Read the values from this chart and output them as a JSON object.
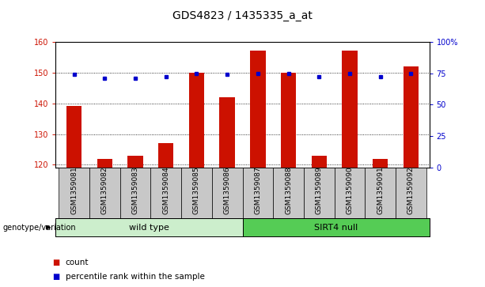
{
  "title": "GDS4823 / 1435335_a_at",
  "samples": [
    "GSM1359081",
    "GSM1359082",
    "GSM1359083",
    "GSM1359084",
    "GSM1359085",
    "GSM1359086",
    "GSM1359087",
    "GSM1359088",
    "GSM1359089",
    "GSM1359090",
    "GSM1359091",
    "GSM1359092"
  ],
  "counts": [
    139,
    122,
    123,
    127,
    150,
    142,
    157,
    150,
    123,
    157,
    122,
    152
  ],
  "percentiles": [
    74,
    71,
    71,
    72,
    75,
    74,
    75,
    75,
    72,
    75,
    72,
    75
  ],
  "bar_color": "#cc1100",
  "dot_color": "#0000cc",
  "ylim_left": [
    119,
    160
  ],
  "ylim_right": [
    0,
    100
  ],
  "yticks_left": [
    120,
    130,
    140,
    150,
    160
  ],
  "yticks_right": [
    0,
    25,
    50,
    75,
    100
  ],
  "ytick_labels_right": [
    "0",
    "25",
    "50",
    "75",
    "100%"
  ],
  "bg_color": "#ffffff",
  "legend_count_color": "#cc1100",
  "legend_pct_color": "#0000cc",
  "label_bar": "count",
  "label_pct": "percentile rank within the sample",
  "genotype_label": "genotype/variation",
  "title_fontsize": 10,
  "tick_fontsize": 7,
  "sample_fontsize": 6.5,
  "group_fontsize": 8,
  "legend_fontsize": 7.5,
  "genotype_fontsize": 7,
  "bar_width": 0.5,
  "wt_color": "#cceecc",
  "sirt_color": "#55cc55",
  "sample_bg": "#c8c8c8",
  "n_wt": 6,
  "n_sirt": 6
}
